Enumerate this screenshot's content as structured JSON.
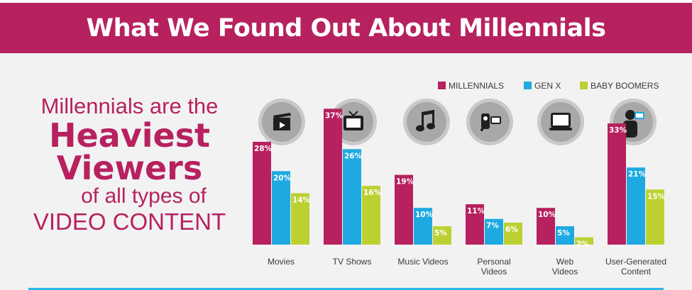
{
  "header": {
    "title": "What We Found Out About Millennials"
  },
  "headline": {
    "line1": "Millennials are the",
    "line2": "Heaviest",
    "line3": "Viewers",
    "line4": "of all types of",
    "line5": "VIDEO CONTENT"
  },
  "colors": {
    "banner": "#b7215f",
    "millennials": "#b7215f",
    "genx": "#1fa9e1",
    "boomers": "#bcd131",
    "divider": "#29b6e8"
  },
  "chart_data": {
    "type": "bar",
    "categories": [
      [
        "Movies"
      ],
      [
        "TV Shows"
      ],
      [
        "Music Videos"
      ],
      [
        "Personal",
        "Videos"
      ],
      [
        "Web",
        "Videos"
      ],
      [
        "User-Generated",
        "Content"
      ]
    ],
    "category_icons": [
      "clapperboard-icon",
      "tv-icon",
      "music-note-icon",
      "camcorder-icon",
      "laptop-icon",
      "person-camera-icon"
    ],
    "series": [
      {
        "name": "MILLENNIALS",
        "values": [
          28,
          37,
          19,
          11,
          10,
          33
        ],
        "labels": [
          "28%",
          "37%",
          "19%",
          "11%",
          "10%",
          "33%"
        ]
      },
      {
        "name": "GEN X",
        "values": [
          20,
          26,
          10,
          7,
          5,
          21
        ],
        "labels": [
          "20%",
          "26%",
          "10%",
          "7%",
          "5%",
          "21%"
        ]
      },
      {
        "name": "BABY BOOMERS",
        "values": [
          14,
          16,
          5,
          6,
          2,
          15
        ],
        "labels": [
          "14%",
          "16%",
          "5%",
          "6%",
          "2%",
          "15%"
        ]
      }
    ],
    "legend_position": "top-right",
    "value_unit": "%"
  }
}
